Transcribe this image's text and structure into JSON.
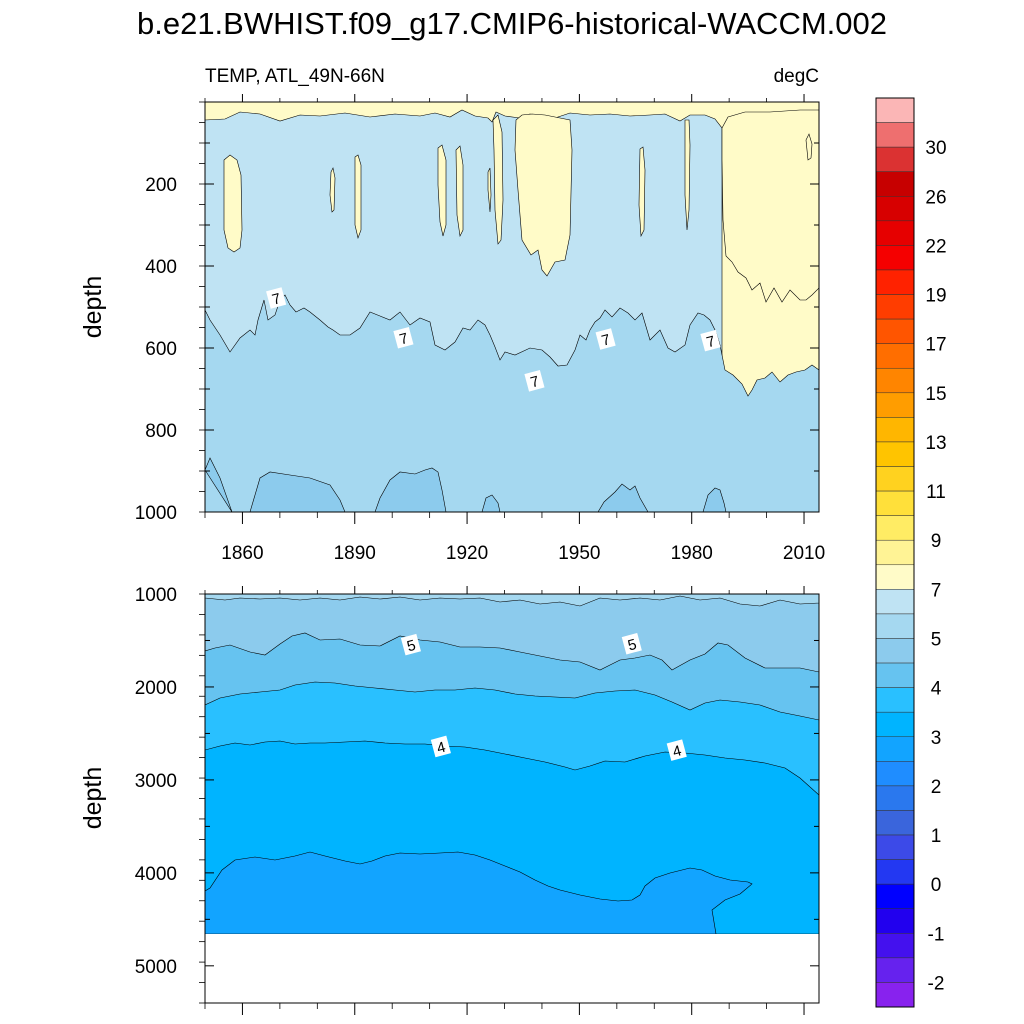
{
  "title": "b.e21.BWHIST.f09_g17.CMIP6-historical-WACCM.002",
  "chart_data": {
    "type": "contour",
    "variable_label": "TEMP, ATL_49N-66N",
    "units_label": "degC",
    "x_range": [
      1850,
      2014
    ],
    "x_ticks": [
      1860,
      1890,
      1920,
      1950,
      1980,
      2010
    ],
    "panels": [
      {
        "name": "upper",
        "ylabel": "depth",
        "y_range": [
          0,
          1000
        ],
        "y_ticks": [
          200,
          400,
          600,
          800,
          1000
        ],
        "y_minor": [
          100,
          300,
          500,
          700,
          900
        ],
        "contour_labels": [
          {
            "text": "7",
            "x": 1869,
            "depth": 478
          },
          {
            "text": "7",
            "x": 1903,
            "depth": 575
          },
          {
            "text": "7",
            "x": 1938,
            "depth": 680
          },
          {
            "text": "7",
            "x": 1957,
            "depth": 578
          },
          {
            "text": "7",
            "x": 1985,
            "depth": 582
          }
        ]
      },
      {
        "name": "lower",
        "ylabel": "depth",
        "y_range": [
          1000,
          5400
        ],
        "y_ticks": [
          1000,
          2000,
          3000,
          4000,
          5000
        ],
        "y_minor": [
          1500,
          2500,
          3500,
          4500
        ],
        "data_bottom_depth": 4600,
        "contour_labels": [
          {
            "text": "5",
            "x": 1905,
            "depth": 1545
          },
          {
            "text": "5",
            "x": 1964,
            "depth": 1535
          },
          {
            "text": "4",
            "x": 1913,
            "depth": 2640
          },
          {
            "text": "4",
            "x": 1976,
            "depth": 2680
          }
        ]
      }
    ],
    "colorbar": {
      "colors": [
        "#fbb6b6",
        "#ee6f6f",
        "#db3232",
        "#c70000",
        "#d70000",
        "#e60000",
        "#f50000",
        "#ff2200",
        "#ff3d00",
        "#ff5500",
        "#ff6e00",
        "#ff8500",
        "#ff9d00",
        "#ffb600",
        "#ffc400",
        "#ffd21f",
        "#ffe03a",
        "#ffec64",
        "#fff395",
        "#fffbc8",
        "#bfe3f3",
        "#a5d8f0",
        "#8ccbed",
        "#66c3f0",
        "#29c0ff",
        "#00b4ff",
        "#12a4ff",
        "#1f8dff",
        "#2a78ee",
        "#3a65dc",
        "#3c4ae8",
        "#2338f2",
        "#0000ff",
        "#2200ee",
        "#4411ee",
        "#6622ee",
        "#8822ee"
      ],
      "labels": [
        "30",
        "26",
        "22",
        "19",
        "17",
        "15",
        "13",
        "11",
        "9",
        "7",
        "5",
        "4",
        "3",
        "2",
        "1",
        "0",
        "-1",
        "-2"
      ]
    }
  }
}
